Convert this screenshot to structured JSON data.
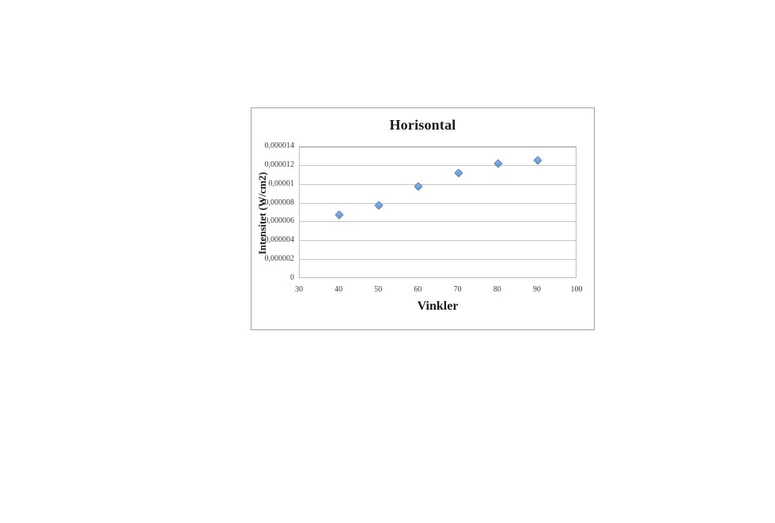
{
  "page": {
    "background": "#ffffff"
  },
  "chart_data": {
    "type": "scatter",
    "title": "Horisontal",
    "xlabel": "Vinkler",
    "ylabel": "Intensitet (W/cm2)",
    "x": [
      40,
      50,
      60,
      70,
      80,
      90
    ],
    "y": [
      6.8e-06,
      7.8e-06,
      9.8e-06,
      1.12e-05,
      1.22e-05,
      1.26e-05
    ],
    "xlim": [
      30,
      100
    ],
    "ylim": [
      0,
      1.4e-05
    ],
    "x_ticks": [
      30,
      40,
      50,
      60,
      70,
      80,
      90,
      100
    ],
    "y_ticks": [
      "0",
      "0,000002",
      "0,000004",
      "0,000006",
      "0,000008",
      "0,00001",
      "0,000012",
      "0,000014"
    ],
    "grid": "horizontal",
    "legend_position": "none",
    "marker": {
      "shape": "diamond",
      "fill_top": "#8ab6e4",
      "fill_bottom": "#5f94cf",
      "border": "#4f81bd"
    },
    "colors": {
      "gridline": "#c4c4c4",
      "plot_border": "#bdbdbd",
      "frame_border": "#a0a0a0",
      "tick_text": "#3b3b3b",
      "title_text": "#1a1a1a"
    }
  }
}
